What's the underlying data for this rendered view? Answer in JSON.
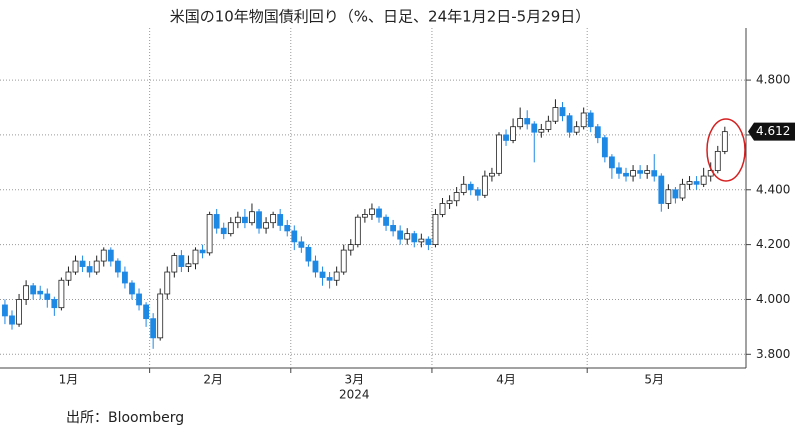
{
  "chart_data": {
    "type": "candlestick",
    "title": "米国の10年物国債利回り（%、日足、24年1月2日-5月29日）",
    "source": "出所：Bloomberg",
    "x_year_label": "2024",
    "up_color": "#ffffff",
    "down_color": "#1e88e5",
    "open": [
      3.98,
      3.94,
      3.91,
      4.0,
      4.05,
      4.03,
      4.02,
      4.0,
      3.97,
      4.07,
      4.1,
      4.14,
      4.12,
      4.1,
      4.14,
      4.18,
      4.14,
      4.1,
      4.06,
      4.02,
      3.98,
      3.93,
      3.86,
      4.02,
      4.1,
      4.16,
      4.12,
      4.13,
      4.18,
      4.17,
      4.31,
      4.26,
      4.24,
      4.28,
      4.3,
      4.28,
      4.32,
      4.26,
      4.28,
      4.31,
      4.27,
      4.25,
      4.21,
      4.19,
      4.14,
      4.1,
      4.08,
      4.07,
      4.1,
      4.18,
      4.2,
      4.3,
      4.31,
      4.33,
      4.3,
      4.27,
      4.25,
      4.22,
      4.24,
      4.21,
      4.22,
      4.2,
      4.31,
      4.35,
      4.36,
      4.39,
      4.42,
      4.4,
      4.38,
      4.45,
      4.46,
      4.6,
      4.58,
      4.63,
      4.66,
      4.64,
      4.61,
      4.62,
      4.65,
      4.7,
      4.67,
      4.61,
      4.63,
      4.68,
      4.63,
      4.59,
      4.52,
      4.48,
      4.46,
      4.45,
      4.47,
      4.46,
      4.47,
      4.45,
      4.35,
      4.4,
      4.37,
      4.42,
      4.43,
      4.42,
      4.45,
      4.47,
      4.54
    ],
    "high": [
      4.0,
      3.96,
      4.02,
      4.07,
      4.06,
      4.05,
      4.04,
      4.01,
      4.08,
      4.12,
      4.16,
      4.16,
      4.14,
      4.16,
      4.19,
      4.19,
      4.15,
      4.12,
      4.07,
      4.04,
      3.99,
      3.95,
      4.04,
      4.12,
      4.17,
      4.18,
      4.16,
      4.19,
      4.2,
      4.32,
      4.33,
      4.28,
      4.3,
      4.32,
      4.33,
      4.35,
      4.33,
      4.3,
      4.32,
      4.33,
      4.29,
      4.27,
      4.23,
      4.2,
      4.16,
      4.12,
      4.1,
      4.12,
      4.2,
      4.22,
      4.31,
      4.33,
      4.35,
      4.34,
      4.31,
      4.29,
      4.27,
      4.26,
      4.25,
      4.24,
      4.23,
      4.33,
      4.37,
      4.38,
      4.41,
      4.45,
      4.43,
      4.41,
      4.47,
      4.48,
      4.61,
      4.62,
      4.66,
      4.7,
      4.69,
      4.65,
      4.64,
      4.67,
      4.73,
      4.72,
      4.68,
      4.65,
      4.7,
      4.69,
      4.64,
      4.6,
      4.53,
      4.5,
      4.48,
      4.49,
      4.49,
      4.49,
      4.53,
      4.46,
      4.42,
      4.41,
      4.44,
      4.45,
      4.45,
      4.48,
      4.5,
      4.56,
      4.63
    ],
    "low": [
      3.91,
      3.89,
      3.9,
      3.98,
      4.0,
      4.0,
      3.97,
      3.94,
      3.96,
      4.05,
      4.09,
      4.1,
      4.08,
      4.09,
      4.12,
      4.12,
      4.08,
      4.04,
      4.0,
      3.96,
      3.9,
      3.82,
      3.85,
      4.0,
      4.08,
      4.1,
      4.1,
      4.11,
      4.15,
      4.16,
      4.24,
      4.22,
      4.23,
      4.26,
      4.26,
      4.27,
      4.24,
      4.24,
      4.26,
      4.25,
      4.23,
      4.18,
      4.17,
      4.12,
      4.08,
      4.05,
      4.04,
      4.05,
      4.09,
      4.16,
      4.19,
      4.28,
      4.29,
      4.28,
      4.25,
      4.23,
      4.2,
      4.2,
      4.19,
      4.19,
      4.18,
      4.19,
      4.3,
      4.33,
      4.34,
      4.38,
      4.38,
      4.36,
      4.37,
      4.43,
      4.45,
      4.56,
      4.57,
      4.62,
      4.62,
      4.5,
      4.59,
      4.61,
      4.64,
      4.65,
      4.59,
      4.6,
      4.62,
      4.61,
      4.57,
      4.5,
      4.44,
      4.44,
      4.43,
      4.43,
      4.44,
      4.44,
      4.43,
      4.32,
      4.33,
      4.35,
      4.36,
      4.4,
      4.4,
      4.41,
      4.43,
      4.46,
      4.53
    ],
    "close": [
      3.94,
      3.91,
      4.0,
      4.05,
      4.02,
      4.02,
      4.0,
      3.97,
      4.07,
      4.1,
      4.14,
      4.12,
      4.1,
      4.14,
      4.18,
      4.14,
      4.1,
      4.06,
      4.02,
      3.98,
      3.93,
      3.86,
      4.02,
      4.1,
      4.16,
      4.12,
      4.13,
      4.18,
      4.17,
      4.31,
      4.26,
      4.24,
      4.28,
      4.3,
      4.28,
      4.32,
      4.26,
      4.28,
      4.31,
      4.27,
      4.25,
      4.21,
      4.19,
      4.14,
      4.1,
      4.08,
      4.07,
      4.1,
      4.18,
      4.2,
      4.3,
      4.31,
      4.33,
      4.3,
      4.27,
      4.25,
      4.22,
      4.24,
      4.21,
      4.22,
      4.2,
      4.31,
      4.35,
      4.36,
      4.39,
      4.42,
      4.4,
      4.38,
      4.45,
      4.46,
      4.6,
      4.58,
      4.63,
      4.66,
      4.64,
      4.61,
      4.62,
      4.65,
      4.7,
      4.67,
      4.61,
      4.63,
      4.68,
      4.63,
      4.59,
      4.52,
      4.48,
      4.46,
      4.45,
      4.47,
      4.46,
      4.47,
      4.45,
      4.35,
      4.4,
      4.37,
      4.42,
      4.43,
      4.42,
      4.45,
      4.47,
      4.54,
      4.612
    ],
    "xlim": [
      -0.7,
      105
    ],
    "xticks": [
      {
        "value": 9,
        "label": "1月"
      },
      {
        "value": 29.5,
        "label": "2月"
      },
      {
        "value": 49.5,
        "label": "3月"
      },
      {
        "value": 71,
        "label": "4月"
      },
      {
        "value": 92,
        "label": "5月"
      }
    ],
    "xgrid": [
      20.5,
      40.5,
      60.5,
      82.5
    ],
    "ylim": [
      3.75,
      4.99
    ],
    "yticks": [
      {
        "value": 3.8,
        "label": "3.800"
      },
      {
        "value": 4.0,
        "label": "4.000"
      },
      {
        "value": 4.2,
        "label": "4.200"
      },
      {
        "value": 4.4,
        "label": "4.400"
      },
      {
        "value": 4.6,
        "label": "4.600"
      },
      {
        "value": 4.8,
        "label": "4.800"
      }
    ],
    "grid": true
  }
}
